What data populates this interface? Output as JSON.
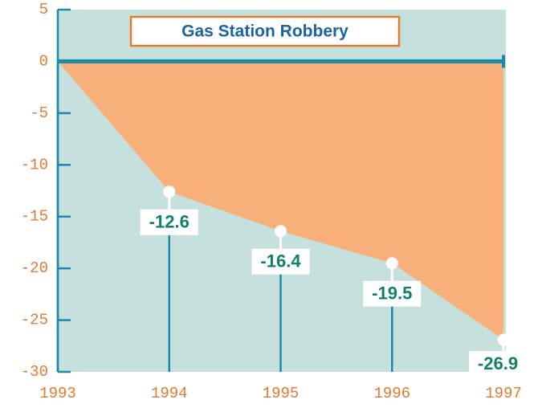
{
  "chart_data": {
    "type": "area",
    "title": "Gas Station Robbery",
    "x": [
      1993,
      1994,
      1995,
      1996,
      1997
    ],
    "values": [
      0,
      -12.6,
      -16.4,
      -19.5,
      -26.9
    ],
    "xlim": [
      1993,
      1997
    ],
    "xticks": [
      1993,
      1994,
      1995,
      1996,
      1997
    ],
    "ylim": [
      -30,
      5
    ],
    "yticks": [
      5,
      0,
      -5,
      -10,
      -15,
      -20,
      -25,
      -30
    ],
    "color": "#f8b07a",
    "background": "#c6e1dd",
    "axis_color": "#1a8aa8"
  }
}
